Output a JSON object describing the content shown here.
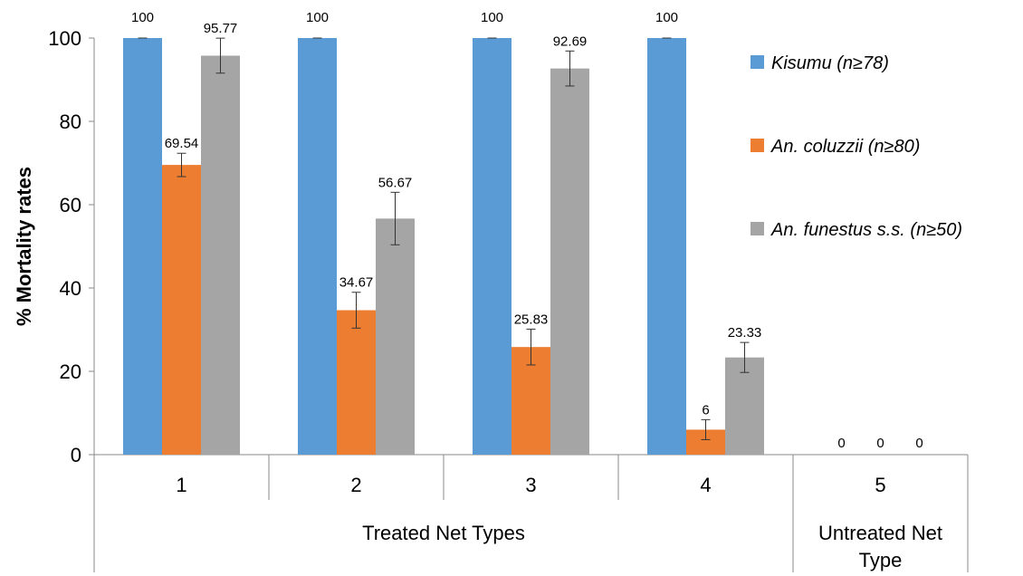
{
  "chart_data": {
    "type": "bar",
    "categories": [
      "1",
      "2",
      "3",
      "4",
      "5"
    ],
    "groups": [
      {
        "label": "Treated Net Types",
        "categories": [
          "1",
          "2",
          "3",
          "4"
        ]
      },
      {
        "label": "Untreated Net\nType",
        "categories": [
          "5"
        ]
      }
    ],
    "series": [
      {
        "name": "Kisumu (n≥78)",
        "color": "#5b9bd5",
        "values": [
          100,
          100,
          100,
          100,
          0
        ],
        "errors": [
          0,
          0,
          0,
          0,
          0
        ]
      },
      {
        "name": "An. coluzzii (n≥80)",
        "color": "#ed7d31",
        "values": [
          69.54,
          34.67,
          25.83,
          6,
          0
        ],
        "errors": [
          2.8,
          4.3,
          4.3,
          2.4,
          0
        ]
      },
      {
        "name": "An. funestus s.s. (n≥50)",
        "color": "#a5a5a5",
        "values": [
          95.77,
          56.67,
          92.69,
          23.33,
          0
        ],
        "errors": [
          4.2,
          6.3,
          4.2,
          3.6,
          0
        ]
      }
    ],
    "data_labels": [
      [
        "100",
        "100",
        "100",
        "100",
        "0"
      ],
      [
        "69.54",
        "34.67",
        "25.83",
        "6",
        "0"
      ],
      [
        "95.77",
        "56.67",
        "92.69",
        "23.33",
        "0"
      ]
    ],
    "ylabel": "% Mortality rates",
    "xlabel": "",
    "title": "",
    "ylim": [
      0,
      100
    ],
    "yticks": [
      0,
      20,
      40,
      60,
      80,
      100
    ],
    "grid": false,
    "legend_position": "right"
  }
}
